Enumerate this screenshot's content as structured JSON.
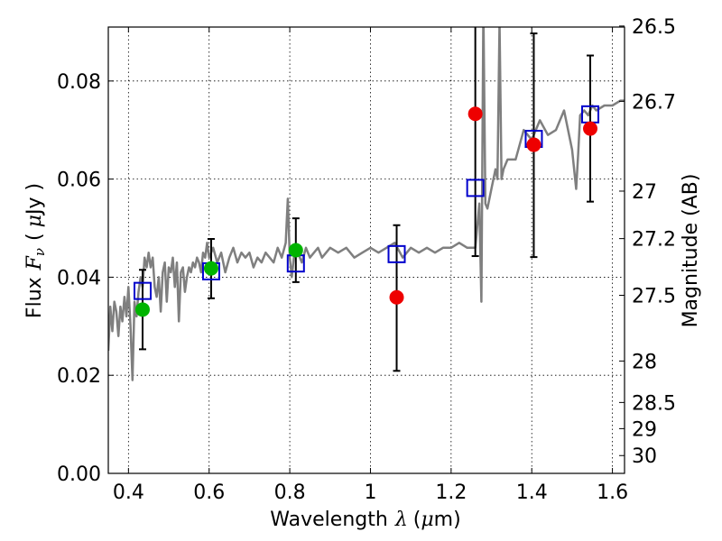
{
  "chart_data": {
    "type": "scatter",
    "title": "",
    "xlabel": "Wavelength",
    "xlabel_symbol": "λ",
    "xlabel_unit_open": "(",
    "xlabel_unit_mu": "μ",
    "xlabel_unit_close": "m)",
    "ylabel": "Flux",
    "ylabel_symbol": "F",
    "ylabel_subscript": "ν",
    "ylabel_unit_open": "(",
    "ylabel_unit_mu": "μ",
    "ylabel_unit_close": "Jy )",
    "y2label": "Magnitude (AB)",
    "xlim": [
      0.35,
      1.63
    ],
    "ylim": [
      0.0,
      0.091
    ],
    "grid": true,
    "x_ticks": [
      0.4,
      0.6,
      0.8,
      1.0,
      1.2,
      1.4,
      1.6
    ],
    "x_tick_labels": [
      "0.4",
      "0.6",
      "0.8",
      "1",
      "1.2",
      "1.4",
      "1.6"
    ],
    "y_ticks": [
      0.0,
      0.02,
      0.04,
      0.06,
      0.08
    ],
    "y_tick_labels": [
      "0.00",
      "0.02",
      "0.04",
      "0.06",
      "0.08"
    ],
    "mag_ticks": [
      26.5,
      26.7,
      27,
      27.2,
      27.5,
      28,
      28.5,
      29,
      30
    ],
    "mag_tick_labels": [
      "26.5",
      "26.7",
      "27",
      "27.2",
      "27.5",
      "28",
      "28.5",
      "29",
      "30"
    ],
    "colors": {
      "model": "#7f7f7f",
      "model_photometry": "#0000cc",
      "green_points": "#00b400",
      "red_points": "#ee0000",
      "errorbar": "#000000"
    },
    "model_spectrum": {
      "x": [
        0.35,
        0.355,
        0.36,
        0.365,
        0.37,
        0.375,
        0.38,
        0.385,
        0.39,
        0.395,
        0.4,
        0.405,
        0.41,
        0.415,
        0.42,
        0.425,
        0.43,
        0.435,
        0.44,
        0.445,
        0.45,
        0.455,
        0.46,
        0.465,
        0.47,
        0.475,
        0.48,
        0.485,
        0.49,
        0.495,
        0.5,
        0.505,
        0.51,
        0.515,
        0.52,
        0.525,
        0.53,
        0.535,
        0.54,
        0.545,
        0.55,
        0.555,
        0.56,
        0.565,
        0.57,
        0.575,
        0.58,
        0.585,
        0.59,
        0.595,
        0.6,
        0.61,
        0.62,
        0.63,
        0.64,
        0.65,
        0.66,
        0.67,
        0.68,
        0.69,
        0.7,
        0.71,
        0.72,
        0.73,
        0.74,
        0.75,
        0.76,
        0.77,
        0.78,
        0.79,
        0.795,
        0.8,
        0.805,
        0.81,
        0.82,
        0.83,
        0.84,
        0.85,
        0.86,
        0.87,
        0.88,
        0.9,
        0.92,
        0.94,
        0.96,
        0.98,
        1.0,
        1.02,
        1.04,
        1.06,
        1.08,
        1.1,
        1.12,
        1.14,
        1.16,
        1.18,
        1.2,
        1.22,
        1.24,
        1.25,
        1.26,
        1.27,
        1.275,
        1.28,
        1.285,
        1.29,
        1.3,
        1.31,
        1.315,
        1.32,
        1.325,
        1.33,
        1.34,
        1.36,
        1.38,
        1.4,
        1.42,
        1.44,
        1.46,
        1.48,
        1.5,
        1.51,
        1.515,
        1.52,
        1.53,
        1.54,
        1.55,
        1.56,
        1.58,
        1.6,
        1.62,
        1.63
      ],
      "y": [
        0.025,
        0.034,
        0.029,
        0.035,
        0.033,
        0.028,
        0.034,
        0.031,
        0.036,
        0.032,
        0.038,
        0.03,
        0.019,
        0.035,
        0.032,
        0.037,
        0.04,
        0.038,
        0.044,
        0.042,
        0.045,
        0.042,
        0.044,
        0.038,
        0.036,
        0.04,
        0.033,
        0.041,
        0.043,
        0.035,
        0.042,
        0.041,
        0.044,
        0.038,
        0.043,
        0.031,
        0.041,
        0.042,
        0.037,
        0.04,
        0.042,
        0.041,
        0.043,
        0.042,
        0.044,
        0.043,
        0.041,
        0.045,
        0.044,
        0.047,
        0.044,
        0.046,
        0.043,
        0.045,
        0.041,
        0.044,
        0.046,
        0.043,
        0.045,
        0.044,
        0.045,
        0.042,
        0.044,
        0.043,
        0.045,
        0.044,
        0.043,
        0.046,
        0.044,
        0.047,
        0.056,
        0.044,
        0.04,
        0.044,
        0.045,
        0.043,
        0.046,
        0.044,
        0.045,
        0.046,
        0.044,
        0.046,
        0.045,
        0.046,
        0.044,
        0.045,
        0.046,
        0.045,
        0.046,
        0.047,
        0.044,
        0.046,
        0.045,
        0.046,
        0.045,
        0.046,
        0.046,
        0.047,
        0.046,
        0.046,
        0.046,
        0.055,
        0.035,
        0.095,
        0.055,
        0.054,
        0.058,
        0.062,
        0.06,
        0.092,
        0.06,
        0.062,
        0.064,
        0.064,
        0.07,
        0.068,
        0.072,
        0.069,
        0.07,
        0.074,
        0.066,
        0.058,
        0.065,
        0.073,
        0.074,
        0.073,
        0.075,
        0.074,
        0.075,
        0.075,
        0.076,
        0.076
      ]
    },
    "series": [
      {
        "marker": "open-square",
        "x": [
          0.435,
          0.605,
          0.815,
          1.065,
          1.26,
          1.405,
          1.545
        ],
        "y": [
          0.0372,
          0.0412,
          0.0428,
          0.0447,
          0.0582,
          0.0682,
          0.0732
        ]
      },
      {
        "marker": "filled-circle-green",
        "x": [
          0.435,
          0.605,
          0.815
        ],
        "y": [
          0.0334,
          0.0418,
          0.0455
        ],
        "yerr_low": [
          0.0253,
          0.0357,
          0.039
        ],
        "yerr_high": [
          0.0415,
          0.0478,
          0.052
        ]
      },
      {
        "marker": "filled-circle-red",
        "x": [
          1.065,
          1.26,
          1.405,
          1.545
        ],
        "y": [
          0.0359,
          0.0733,
          0.067,
          0.0703
        ],
        "yerr_low": [
          0.0209,
          0.0443,
          0.0441,
          0.0554
        ],
        "yerr_high": [
          0.0506,
          0.095,
          0.0897,
          0.0852
        ]
      }
    ]
  }
}
